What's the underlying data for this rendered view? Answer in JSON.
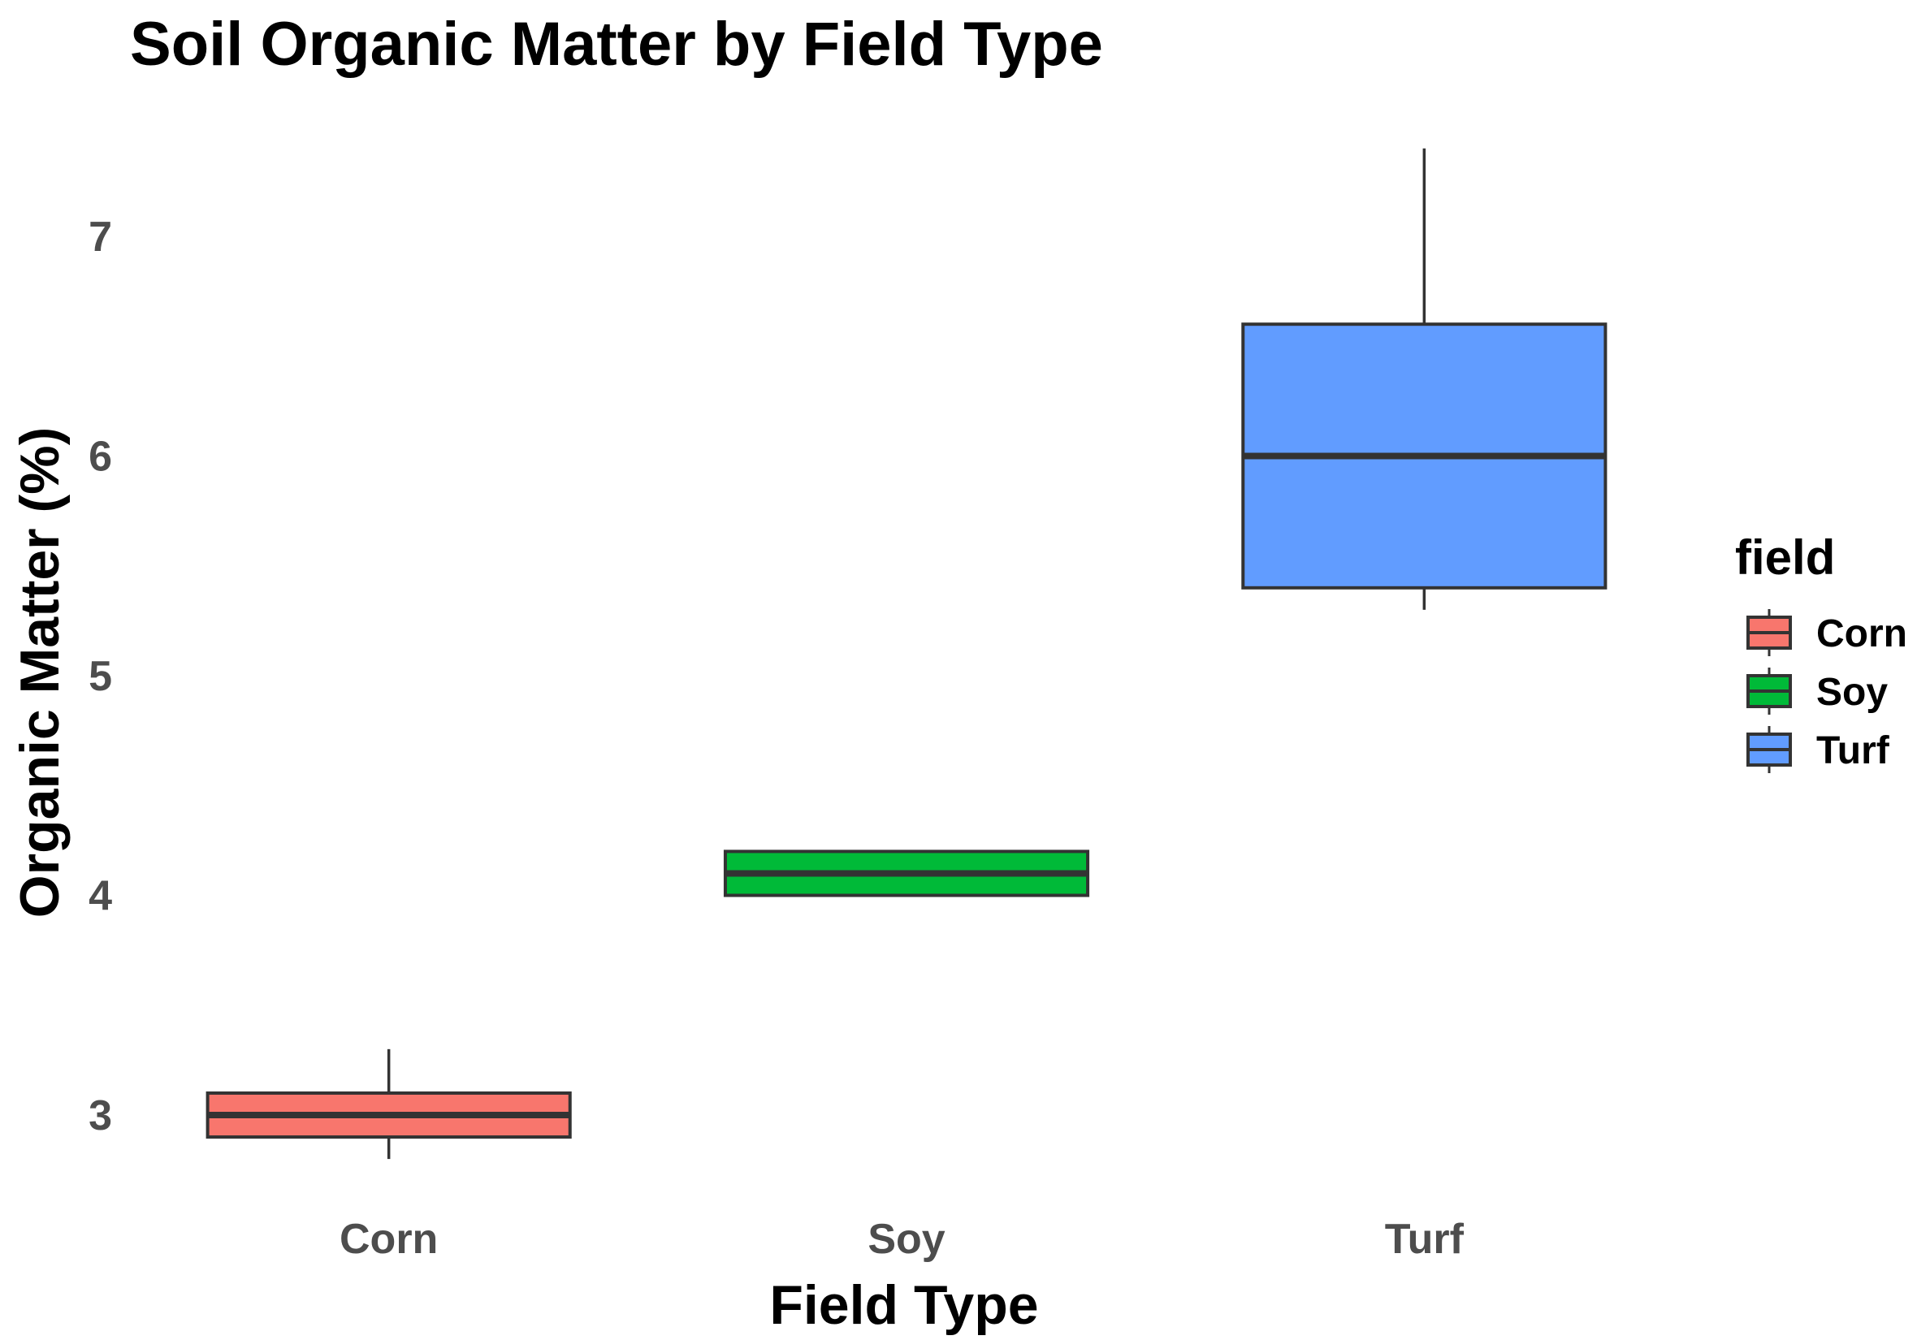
{
  "chart_data": {
    "type": "boxplot",
    "title": "Soil Organic Matter by Field Type",
    "xlabel": "Field Type",
    "ylabel": "Organic Matter (%)",
    "categories": [
      "Corn",
      "Soy",
      "Turf"
    ],
    "ylim": [
      2.6,
      7.6
    ],
    "y_ticks": [
      3,
      4,
      5,
      6,
      7
    ],
    "grid": false,
    "legend": {
      "title": "field",
      "position": "right",
      "entries": [
        "Corn",
        "Soy",
        "Turf"
      ]
    },
    "series": [
      {
        "category": "Corn",
        "color": "#F8766D",
        "min": 2.8,
        "q1": 2.9,
        "median": 3.0,
        "q3": 3.1,
        "max": 3.3
      },
      {
        "category": "Soy",
        "color": "#00BA38",
        "min": 4.0,
        "q1": 4.0,
        "median": 4.1,
        "q3": 4.2,
        "max": 4.2
      },
      {
        "category": "Turf",
        "color": "#619CFF",
        "min": 5.3,
        "q1": 5.4,
        "median": 6.0,
        "q3": 6.6,
        "max": 7.4
      }
    ],
    "outline_color": "#333333"
  }
}
